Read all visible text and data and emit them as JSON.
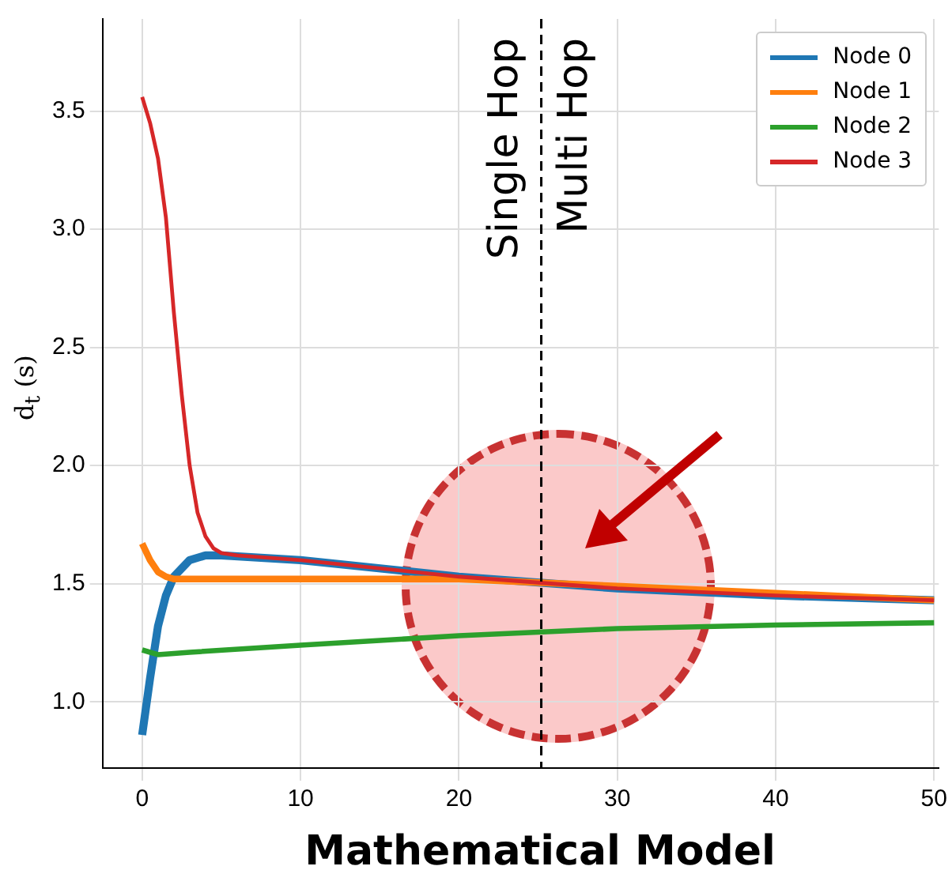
{
  "chart_data": {
    "type": "line",
    "xlabel": "Mathematical Model",
    "ylabel": "d$_{t}$ (s)",
    "xlim": [
      -2.5,
      50.3
    ],
    "ylim": [
      0.72,
      3.89
    ],
    "xticks": [
      0,
      10,
      20,
      30,
      40,
      50
    ],
    "yticks": [
      {
        "value": 1,
        "label": "1.0"
      },
      {
        "value": 1.5,
        "label": "1.5"
      },
      {
        "value": 2,
        "label": "2.0"
      },
      {
        "value": 2.5,
        "label": "2.5"
      },
      {
        "value": 3,
        "label": "3.0"
      },
      {
        "value": 3.5,
        "label": "3.5"
      }
    ],
    "grid": true,
    "legend": "top right",
    "marker": "none",
    "line_style": "solid",
    "series": [
      {
        "name": "Node 0",
        "color": "#1f77b4",
        "x": [
          0,
          0.5,
          1,
          1.5,
          2,
          3,
          4,
          5,
          10,
          20,
          30,
          40,
          50
        ],
        "values": [
          0.86,
          1.1,
          1.32,
          1.45,
          1.53,
          1.6,
          1.62,
          1.62,
          1.6,
          1.53,
          1.48,
          1.45,
          1.43
        ]
      },
      {
        "name": "Node 1",
        "color": "#ff7f0e",
        "x": [
          0,
          0.5,
          1,
          1.5,
          2,
          10,
          20,
          30,
          40,
          50
        ],
        "values": [
          1.67,
          1.6,
          1.55,
          1.53,
          1.52,
          1.52,
          1.52,
          1.49,
          1.46,
          1.43
        ]
      },
      {
        "name": "Node 2",
        "color": "#2ca02c",
        "x": [
          0,
          0.5,
          1,
          3,
          10,
          20,
          30,
          40,
          50
        ],
        "values": [
          1.22,
          1.21,
          1.2,
          1.21,
          1.24,
          1.28,
          1.31,
          1.325,
          1.335
        ]
      },
      {
        "name": "Node 3",
        "color": "#d62728",
        "x": [
          0,
          0.5,
          1,
          1.5,
          2,
          2.5,
          3,
          3.5,
          4,
          4.5,
          5,
          6,
          10,
          20,
          30,
          40,
          50
        ],
        "values": [
          3.56,
          3.45,
          3.3,
          3.05,
          2.65,
          2.3,
          2.0,
          1.8,
          1.7,
          1.65,
          1.63,
          1.62,
          1.6,
          1.53,
          1.48,
          1.45,
          1.43
        ]
      }
    ],
    "ref_lines": [
      {
        "axis": "x",
        "value": 25.2,
        "color": "#000000",
        "line_style": "dashed"
      }
    ],
    "annotations": [
      "Single Hop",
      "Multi Hop"
    ]
  }
}
